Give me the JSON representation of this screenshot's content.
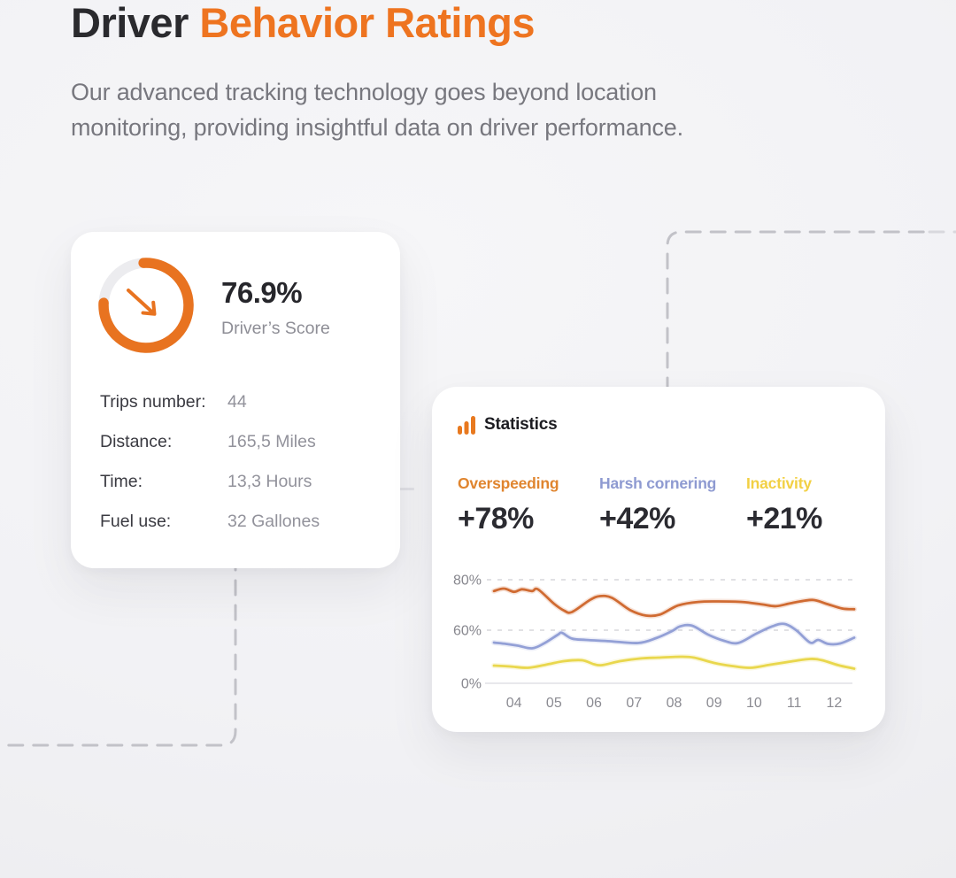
{
  "header": {
    "title_dark": "Driver",
    "title_accent": "Behavior Ratings",
    "subtitle": "Our advanced tracking technology goes beyond location monitoring, providing insightful data on driver performance.",
    "subtitle_lines": [
      "Our advanced tracking technology goes beyond location",
      "monitoring, providing insightful data on driver performance."
    ],
    "accent_color": "#ee7420"
  },
  "score_card": {
    "percent": 76.9,
    "percent_label": "76.9%",
    "score_caption": "Driver’s Score",
    "ring_color": "#e87320",
    "ring_track_color": "#ececef",
    "rows": [
      {
        "label": "Trips number:",
        "value": "44"
      },
      {
        "label": "Distance:",
        "value": "165,5 Miles"
      },
      {
        "label": "Time:",
        "value": "13,3 Hours"
      },
      {
        "label": "Fuel use:",
        "value": "32 Gallones"
      }
    ]
  },
  "stats_card": {
    "title": "Statistics",
    "icon_color": "#e8791f",
    "metrics": [
      {
        "label": "Overspeeding",
        "value": "+78%",
        "color": "#e0852f"
      },
      {
        "label": "Harsh cornering",
        "value": "+42%",
        "color": "#8e9ad1"
      },
      {
        "label": "Inactivity",
        "value": "+21%",
        "color": "#f2d044"
      }
    ]
  },
  "chart_data": {
    "type": "line",
    "title": "Statistics",
    "categories": [
      "04",
      "05",
      "06",
      "07",
      "08",
      "09",
      "10",
      "11",
      "12"
    ],
    "x_month_start": 4,
    "xlabel": "",
    "ylabel": "",
    "y_ticks": [
      {
        "value": 0,
        "label": "0%"
      },
      {
        "value": 60,
        "label": "60%"
      },
      {
        "value": 80,
        "label": "80%"
      }
    ],
    "axis_note": "y-axis is non-linear: tick marks 0%, 60%, 80% are evenly spaced; dashed gridlines at 60% and 80%, solid baseline at 0%",
    "grid": "dashed-horizontal",
    "legend_position": "top",
    "series": [
      {
        "name": "Overspeeding",
        "color": "#d06b32",
        "monthly_values": [
          75,
          70,
          73,
          67,
          70,
          71,
          70,
          71,
          69
        ],
        "points": [
          [
            3.5,
            75.5
          ],
          [
            3.75,
            76.5
          ],
          [
            4.0,
            75.2
          ],
          [
            4.2,
            76.2
          ],
          [
            4.45,
            75.5
          ],
          [
            4.6,
            76.2
          ],
          [
            5.0,
            70.5
          ],
          [
            5.25,
            67.8
          ],
          [
            5.45,
            67.2
          ],
          [
            5.9,
            72.0
          ],
          [
            6.15,
            73.5
          ],
          [
            6.45,
            72.8
          ],
          [
            6.9,
            68.0
          ],
          [
            7.3,
            65.8
          ],
          [
            7.65,
            66.2
          ],
          [
            8.1,
            69.8
          ],
          [
            8.6,
            71.2
          ],
          [
            9.1,
            71.4
          ],
          [
            9.7,
            71.2
          ],
          [
            10.2,
            70.2
          ],
          [
            10.55,
            69.5
          ],
          [
            10.95,
            70.8
          ],
          [
            11.45,
            72.0
          ],
          [
            11.8,
            70.5
          ],
          [
            12.2,
            68.6
          ],
          [
            12.5,
            68.3
          ]
        ]
      },
      {
        "name": "Harsh cornering",
        "color": "#93a0d6",
        "monthly_values": [
          43,
          56,
          48,
          45,
          60,
          47,
          56,
          61,
          45
        ],
        "points": [
          [
            3.5,
            46
          ],
          [
            3.8,
            44.5
          ],
          [
            4.1,
            42.5
          ],
          [
            4.45,
            39.5
          ],
          [
            4.75,
            45
          ],
          [
            5.1,
            55
          ],
          [
            5.2,
            57
          ],
          [
            5.45,
            50.5
          ],
          [
            5.8,
            49
          ],
          [
            6.4,
            47.5
          ],
          [
            7.1,
            45.5
          ],
          [
            7.55,
            51
          ],
          [
            7.95,
            59
          ],
          [
            8.15,
            61.5
          ],
          [
            8.45,
            61.8
          ],
          [
            8.85,
            55
          ],
          [
            9.25,
            48
          ],
          [
            9.6,
            45.5
          ],
          [
            10.05,
            56
          ],
          [
            10.45,
            61.5
          ],
          [
            10.75,
            62.5
          ],
          [
            11.05,
            60
          ],
          [
            11.4,
            46
          ],
          [
            11.6,
            49
          ],
          [
            11.85,
            44.5
          ],
          [
            12.15,
            45
          ],
          [
            12.5,
            51.5
          ]
        ]
      },
      {
        "name": "Inactivity",
        "color": "#e9d74d",
        "monthly_values": [
          18,
          24,
          21,
          27,
          30,
          23,
          19,
          28,
          21
        ],
        "points": [
          [
            3.5,
            20
          ],
          [
            3.9,
            19
          ],
          [
            4.35,
            17.5
          ],
          [
            4.8,
            21
          ],
          [
            5.25,
            25
          ],
          [
            5.7,
            26
          ],
          [
            6.0,
            21.5
          ],
          [
            6.2,
            20.5
          ],
          [
            6.65,
            25
          ],
          [
            7.15,
            28
          ],
          [
            7.6,
            29
          ],
          [
            8.15,
            30
          ],
          [
            8.5,
            29
          ],
          [
            9.0,
            23
          ],
          [
            9.45,
            19.5
          ],
          [
            9.9,
            17.5
          ],
          [
            10.4,
            21
          ],
          [
            10.9,
            24.5
          ],
          [
            11.4,
            27.5
          ],
          [
            11.7,
            26
          ],
          [
            12.1,
            20.5
          ],
          [
            12.5,
            16.5
          ]
        ]
      }
    ]
  }
}
